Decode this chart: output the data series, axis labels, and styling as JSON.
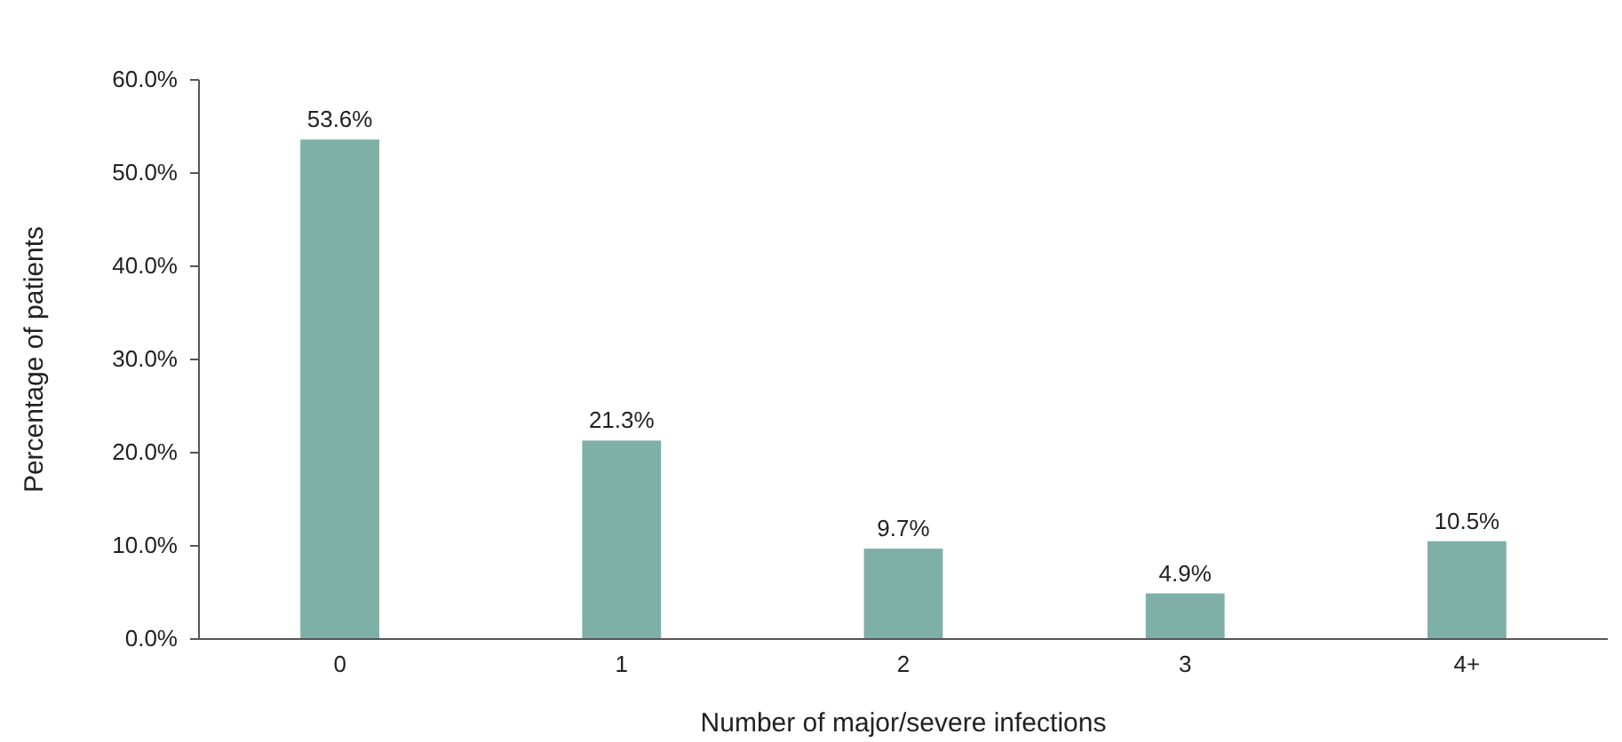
{
  "chart_data": {
    "type": "bar",
    "xlabel": "Number of major/severe infections",
    "ylabel": "Percentage of patients",
    "categories": [
      "0",
      "1",
      "2",
      "3",
      "4+"
    ],
    "values": [
      53.6,
      21.3,
      9.7,
      4.9,
      10.5
    ],
    "value_labels": [
      "53.6%",
      "21.3%",
      "9.7%",
      "4.9%",
      "10.5%"
    ],
    "color": "#7fb0a8",
    "ylim": [
      0,
      60
    ],
    "yticks": [
      {
        "value": 0,
        "label": "0.0%"
      },
      {
        "value": 10,
        "label": "10.0%"
      },
      {
        "value": 20,
        "label": "20.0%"
      },
      {
        "value": 30,
        "label": "30.0%"
      },
      {
        "value": 40,
        "label": "40.0%"
      },
      {
        "value": 50,
        "label": "50.0%"
      },
      {
        "value": 60,
        "label": "60.0%"
      }
    ],
    "grid": false
  }
}
